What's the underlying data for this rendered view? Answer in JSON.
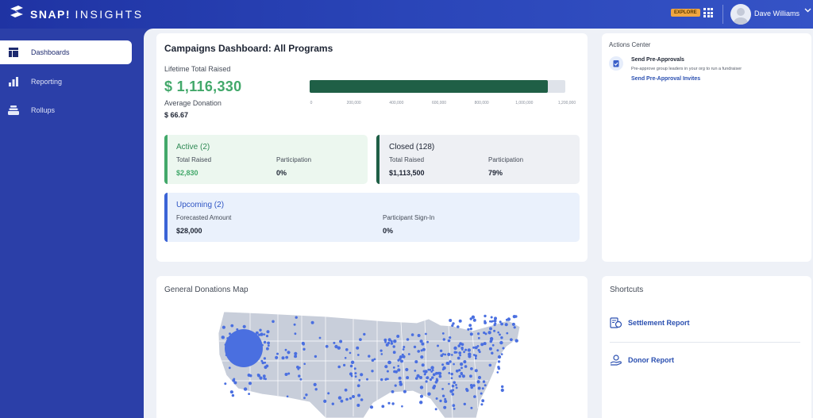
{
  "header": {
    "logo_text": "SNAP!",
    "logo_text_thin": "INSIGHTS",
    "explore_badge": "EXPLORE",
    "user_name": "Dave Williams",
    "icons": [
      "snap-logo-icon",
      "apps-grid-icon",
      "avatar",
      "chevron-down-icon"
    ]
  },
  "sidebar": {
    "items": [
      {
        "label": "Dashboards",
        "icon": "dashboard-icon",
        "active": true
      },
      {
        "label": "Reporting",
        "icon": "bar-chart-icon",
        "active": false
      },
      {
        "label": "Rollups",
        "icon": "stack-icon",
        "active": false
      }
    ]
  },
  "dashboard": {
    "title": "Campaigns Dashboard: All Programs",
    "lifetime_label": "Lifetime Total Raised",
    "lifetime_value": "$ 1,116,330",
    "avg_label": "Average Donation",
    "avg_value": "$ 66.67",
    "progress": {
      "value": 1116330,
      "max": 1200000,
      "ticks": [
        "0",
        "200,000",
        "400,000",
        "600,000",
        "800,000",
        "1,000,000",
        "1,200,000"
      ]
    },
    "active": {
      "title": "Active (2)",
      "total_label": "Total Raised",
      "total_value": "$2,830",
      "participation_label": "Participation",
      "participation_value": "0%"
    },
    "closed": {
      "title": "Closed (128)",
      "total_label": "Total Raised",
      "total_value": "$1,113,500",
      "participation_label": "Participation",
      "participation_value": "79%"
    },
    "upcoming": {
      "title": "Upcoming (2)",
      "forecast_label": "Forecasted Amount",
      "forecast_value": "$28,000",
      "signin_label": "Participant Sign-In",
      "signin_value": "0%"
    }
  },
  "actions": {
    "title": "Actions Center",
    "item_title": "Send Pre-Approvals",
    "item_desc": "Pre-approve group leaders in your org to run a fundraiser",
    "item_link": "Send Pre-Approval Invites"
  },
  "map": {
    "title": "General Donations Map"
  },
  "shortcuts": {
    "title": "Shortcuts",
    "items": [
      {
        "label": "Settlement Report",
        "icon": "settlement-report-icon"
      },
      {
        "label": "Donor Report",
        "icon": "donor-report-icon"
      }
    ]
  },
  "colors": {
    "brand_blue": "#2b3fa8",
    "green": "#42a86a",
    "dark_green": "#1f5f46",
    "upcoming_blue": "#3a63d6",
    "explore": "#f0a640",
    "dot_blue": "#4a6fe0"
  }
}
